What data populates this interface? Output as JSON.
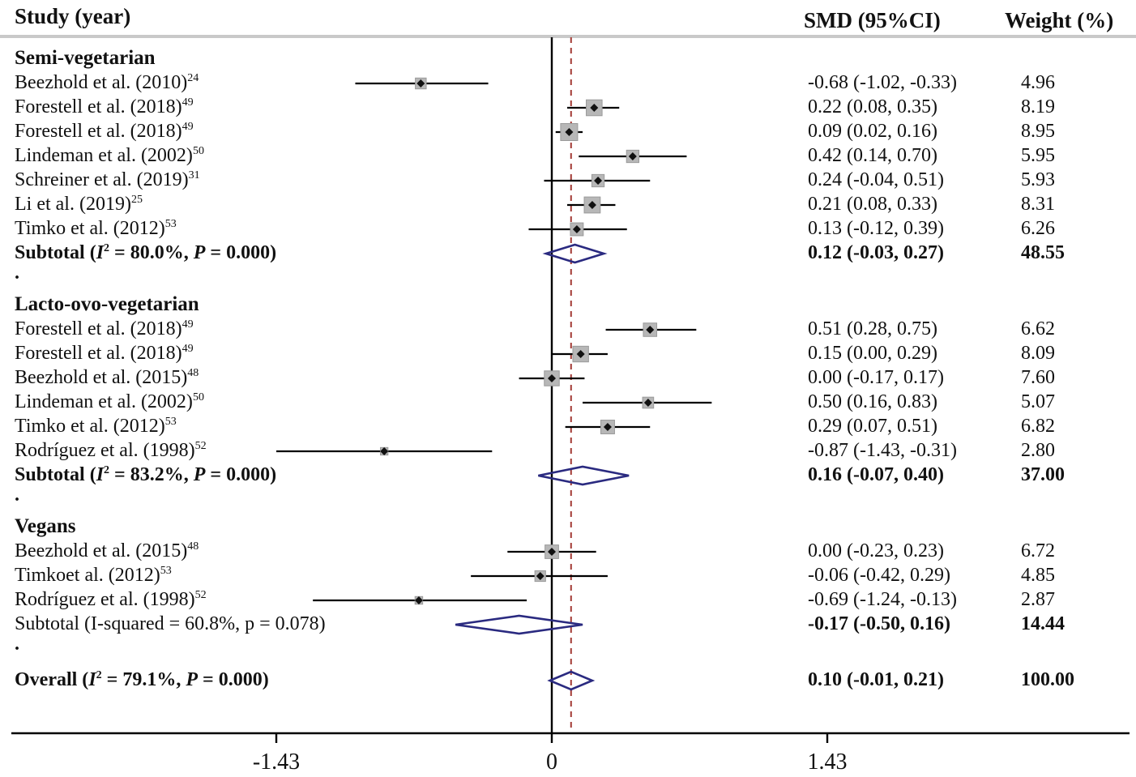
{
  "columns": {
    "study": "Study (year)",
    "smd": "SMD (95%CI)",
    "weight": "Weight (%)"
  },
  "colors": {
    "marker_fill": "#b7b7b7",
    "marker_edge": "#9a9a9a",
    "point": "#111111",
    "ci_line": "#000000",
    "diamond_outline": "#2a2a80",
    "dashed_line": "#a33b35",
    "axis": "#000000",
    "header_rule": "#c9c9c9"
  },
  "chart_data": {
    "type": "forest",
    "xlabel": "",
    "ylabel": "",
    "x_axis": {
      "range": [
        -2.0,
        3.0
      ],
      "ticks": [
        {
          "value": -1.43,
          "label": "-1.43"
        },
        {
          "value": 0,
          "label": "0"
        },
        {
          "value": 1.43,
          "label": "1.43"
        }
      ]
    },
    "zero_line": 0,
    "overall_dashed_line": 0.1,
    "separator_dot": ".",
    "groups": [
      {
        "name": "Semi-vegetarian",
        "studies": [
          {
            "label": "Beezhold et al. (2010)",
            "ref": "24",
            "smd": -0.68,
            "ci": [
              -1.02,
              -0.33
            ],
            "smd_text": "-0.68 (-1.02, -0.33)",
            "weight": 4.96,
            "weight_text": "4.96"
          },
          {
            "label": "Forestell et al. (2018)",
            "ref": "49",
            "smd": 0.22,
            "ci": [
              0.08,
              0.35
            ],
            "smd_text": "0.22 (0.08, 0.35)",
            "weight": 8.19,
            "weight_text": "8.19"
          },
          {
            "label": "Forestell et al. (2018)",
            "ref": "49",
            "smd": 0.09,
            "ci": [
              0.02,
              0.16
            ],
            "smd_text": "0.09 (0.02, 0.16)",
            "weight": 8.95,
            "weight_text": "8.95"
          },
          {
            "label": "Lindeman et al. (2002)",
            "ref": "50",
            "smd": 0.42,
            "ci": [
              0.14,
              0.7
            ],
            "smd_text": "0.42 (0.14, 0.70)",
            "weight": 5.95,
            "weight_text": "5.95"
          },
          {
            "label": "Schreiner et al. (2019)",
            "ref": "31",
            "smd": 0.24,
            "ci": [
              -0.04,
              0.51
            ],
            "smd_text": "0.24 (-0.04, 0.51)",
            "weight": 5.93,
            "weight_text": "5.93"
          },
          {
            "label": "Li et al. (2019)",
            "ref": "25",
            "smd": 0.21,
            "ci": [
              0.08,
              0.33
            ],
            "smd_text": "0.21 (0.08, 0.33)",
            "weight": 8.31,
            "weight_text": "8.31"
          },
          {
            "label": "Timko et al. (2012)",
            "ref": "53",
            "smd": 0.13,
            "ci": [
              -0.12,
              0.39
            ],
            "smd_text": "0.13 (-0.12, 0.39)",
            "weight": 6.26,
            "weight_text": "6.26"
          }
        ],
        "subtotal": {
          "label": "Subtotal  (I² = 80.0%, P = 0.000)",
          "bold": true,
          "smd": 0.12,
          "ci": [
            -0.03,
            0.27
          ],
          "smd_text": "0.12 (-0.03, 0.27)",
          "weight_text": "48.55"
        }
      },
      {
        "name": "Lacto-ovo-vegetarian",
        "studies": [
          {
            "label": "Forestell et al. (2018)",
            "ref": "49",
            "smd": 0.51,
            "ci": [
              0.28,
              0.75
            ],
            "smd_text": "0.51 (0.28, 0.75)",
            "weight": 6.62,
            "weight_text": "6.62"
          },
          {
            "label": "Forestell et al. (2018)",
            "ref": "49",
            "smd": 0.15,
            "ci": [
              0.0,
              0.29
            ],
            "smd_text": "0.15 (0.00, 0.29)",
            "weight": 8.09,
            "weight_text": "8.09"
          },
          {
            "label": "Beezhold et al. (2015)",
            "ref": "48",
            "smd": 0.0,
            "ci": [
              -0.17,
              0.17
            ],
            "smd_text": "0.00 (-0.17, 0.17)",
            "weight": 7.6,
            "weight_text": "7.60"
          },
          {
            "label": "Lindeman et al. (2002)",
            "ref": "50",
            "smd": 0.5,
            "ci": [
              0.16,
              0.83
            ],
            "smd_text": "0.50 (0.16, 0.83)",
            "weight": 5.07,
            "weight_text": "5.07"
          },
          {
            "label": "Timko et al. (2012)",
            "ref": "53",
            "smd": 0.29,
            "ci": [
              0.07,
              0.51
            ],
            "smd_text": "0.29 (0.07, 0.51)",
            "weight": 6.82,
            "weight_text": "6.82"
          },
          {
            "label": "Rodríguez et al. (1998)",
            "ref": "52",
            "smd": -0.87,
            "ci": [
              -1.43,
              -0.31
            ],
            "smd_text": "-0.87 (-1.43, -0.31)",
            "weight": 2.8,
            "weight_text": "2.80"
          }
        ],
        "subtotal": {
          "label": "Subtotal  (I² = 83.2%, P = 0.000)",
          "bold": true,
          "smd": 0.16,
          "ci": [
            -0.07,
            0.4
          ],
          "smd_text": "0.16 (-0.07, 0.40)",
          "weight_text": "37.00"
        }
      },
      {
        "name": "Vegans",
        "studies": [
          {
            "label": "Beezhold et al. (2015)",
            "ref": "48",
            "smd": 0.0,
            "ci": [
              -0.23,
              0.23
            ],
            "smd_text": "0.00 (-0.23, 0.23)",
            "weight": 6.72,
            "weight_text": "6.72"
          },
          {
            "label": "Timkoet al. (2012)",
            "ref": "53",
            "smd": -0.06,
            "ci": [
              -0.42,
              0.29
            ],
            "smd_text": "-0.06 (-0.42, 0.29)",
            "weight": 4.85,
            "weight_text": "4.85"
          },
          {
            "label": "Rodríguez et al. (1998)",
            "ref": "52",
            "smd": -0.69,
            "ci": [
              -1.24,
              -0.13
            ],
            "smd_text": "-0.69 (-1.24, -0.13)",
            "weight": 2.87,
            "weight_text": "2.87"
          }
        ],
        "subtotal": {
          "label": "Subtotal  (I-squared = 60.8%, p = 0.078)",
          "bold": false,
          "smd": -0.17,
          "ci": [
            -0.5,
            0.16
          ],
          "smd_text": "-0.17 (-0.50, 0.16)",
          "weight_text": "14.44"
        }
      }
    ],
    "overall": {
      "label": "Overall  (I² = 79.1%, P = 0.000)",
      "bold": true,
      "smd": 0.1,
      "ci": [
        -0.01,
        0.21
      ],
      "smd_text": "0.10 (-0.01, 0.21)",
      "weight_text": "100.00"
    }
  }
}
